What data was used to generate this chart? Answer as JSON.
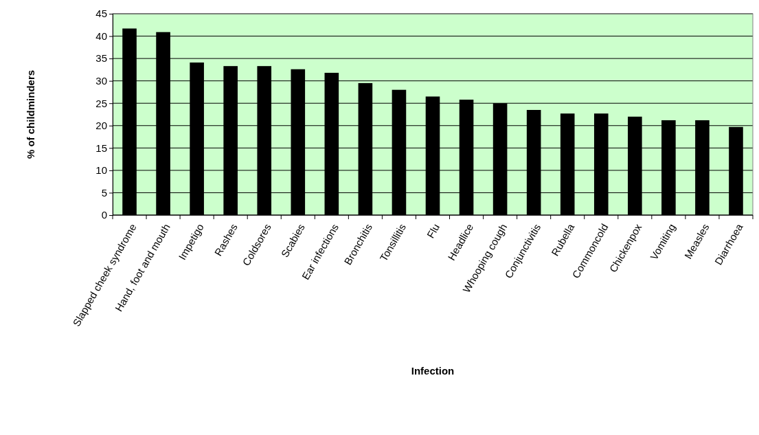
{
  "chart_data": {
    "type": "bar",
    "xlabel": "Infection",
    "ylabel": "% of childminders",
    "categories": [
      "Slapped cheek syndrome",
      "Hand, foot and mouth",
      "Impetigo",
      "Rashes",
      "Coldsores",
      "Scabies",
      "Ear infections",
      "Bronchitis",
      "Tonsillitis",
      "Flu",
      "Headlice",
      "Whooping cough",
      "Conjunctivitis",
      "Rubella",
      "Commoncold",
      "Chickenpox",
      "Vomiting",
      "Measles",
      "Diarrhoea"
    ],
    "values": [
      41.7,
      40.9,
      34.1,
      33.3,
      33.3,
      32.6,
      31.8,
      29.5,
      28.0,
      26.5,
      25.8,
      25.0,
      23.5,
      22.7,
      22.7,
      22.0,
      21.2,
      21.2,
      19.7
    ],
    "color": "#000000",
    "ylim": [
      0,
      45
    ],
    "yticks": [
      0,
      5,
      10,
      15,
      20,
      25,
      30,
      35,
      40,
      45
    ],
    "grid": "y"
  }
}
